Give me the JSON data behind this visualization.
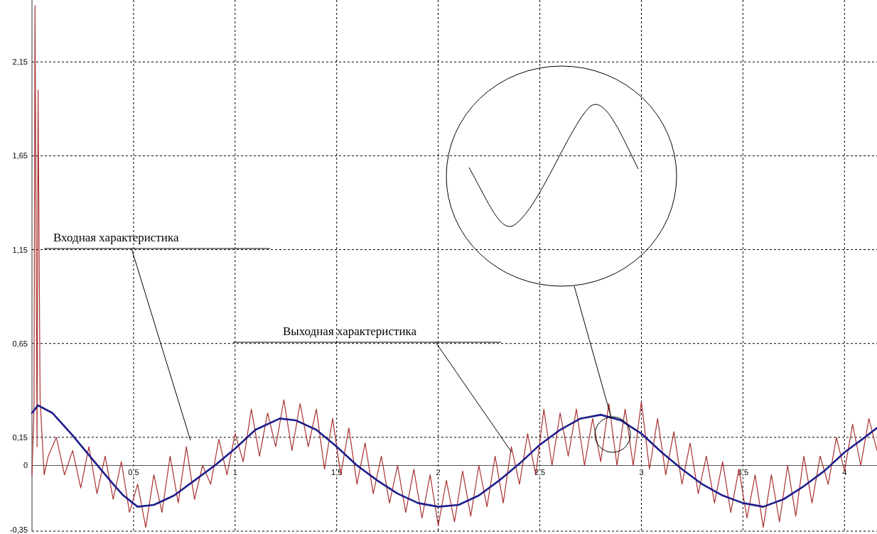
{
  "chart_data": {
    "type": "line",
    "xlim": [
      0,
      4.16
    ],
    "ylim": [
      -0.35,
      2.48
    ],
    "xticks": [
      {
        "value": 0.5,
        "label": "0,5"
      },
      1,
      {
        "value": 1.5,
        "label": "1,5"
      },
      2,
      {
        "value": 2.5,
        "label": "2,5"
      },
      3,
      {
        "value": 3.5,
        "label": "3,5"
      },
      4
    ],
    "yticks": [
      {
        "value": -0.35,
        "label": "-0,35"
      },
      0,
      {
        "value": 0.15,
        "label": "0,15"
      },
      {
        "value": 0.65,
        "label": "0,65"
      },
      {
        "value": 1.15,
        "label": "1,15"
      },
      {
        "value": 1.65,
        "label": "1,65"
      },
      {
        "value": 2.15,
        "label": "2,15"
      }
    ],
    "grid": true,
    "marker": "none",
    "line_style": "solid",
    "series": [
      {
        "color": "#a83232",
        "x": [
          0,
          0.01,
          0.015,
          0.025,
          0.03,
          0.04,
          0.06,
          0.08,
          0.12,
          0.16,
          0.2,
          0.24,
          0.28,
          0.32,
          0.36,
          0.4,
          0.44,
          0.48,
          0.52,
          0.56,
          0.6,
          0.64,
          0.68,
          0.72,
          0.76,
          0.8,
          0.84,
          0.88,
          0.92,
          0.96,
          1,
          1.04,
          1.08,
          1.12,
          1.16,
          1.2,
          1.24,
          1.28,
          1.32,
          1.36,
          1.4,
          1.44,
          1.48,
          1.52,
          1.56,
          1.6,
          1.64,
          1.68,
          1.72,
          1.76,
          1.8,
          1.84,
          1.88,
          1.92,
          1.96,
          2,
          2.04,
          2.08,
          2.12,
          2.16,
          2.2,
          2.24,
          2.28,
          2.32,
          2.36,
          2.4,
          2.44,
          2.48,
          2.52,
          2.56,
          2.6,
          2.64,
          2.68,
          2.72,
          2.76,
          2.8,
          2.84,
          2.88,
          2.92,
          2.96,
          3,
          3.04,
          3.08,
          3.12,
          3.16,
          3.2,
          3.24,
          3.28,
          3.32,
          3.36,
          3.4,
          3.44,
          3.48,
          3.52,
          3.56,
          3.6,
          3.64,
          3.68,
          3.72,
          3.76,
          3.8,
          3.84,
          3.88,
          3.92,
          3.96,
          4,
          4.04,
          4.08,
          4.12,
          4.16
        ],
        "values": [
          -0.05,
          0.3,
          2.45,
          0.1,
          2.0,
          0.35,
          -0.05,
          0.05,
          0.15,
          -0.05,
          0.08,
          -0.12,
          0.1,
          -0.15,
          0.05,
          -0.18,
          0.02,
          -0.25,
          -0.1,
          -0.33,
          -0.05,
          -0.25,
          0.05,
          -0.2,
          0.1,
          -0.18,
          0.0,
          -0.1,
          0.14,
          -0.05,
          0.17,
          0.02,
          0.3,
          0.05,
          0.28,
          0.1,
          0.35,
          0.08,
          0.33,
          0.1,
          0.3,
          -0.02,
          0.25,
          -0.05,
          0.2,
          -0.1,
          0.12,
          -0.15,
          0.05,
          -0.2,
          0.0,
          -0.25,
          -0.02,
          -0.28,
          -0.05,
          -0.32,
          -0.08,
          -0.3,
          -0.03,
          -0.27,
          0.0,
          -0.22,
          0.05,
          -0.2,
          0.1,
          -0.1,
          0.17,
          -0.05,
          0.3,
          0.0,
          0.28,
          0.05,
          0.3,
          0.0,
          0.25,
          0.02,
          0.33,
          0.0,
          0.3,
          0.0,
          0.34,
          -0.02,
          0.25,
          -0.05,
          0.18,
          -0.1,
          0.12,
          -0.15,
          0.05,
          -0.2,
          0.02,
          -0.25,
          -0.02,
          -0.28,
          -0.05,
          -0.33,
          -0.05,
          -0.3,
          0.0,
          -0.27,
          0.05,
          -0.2,
          0.05,
          -0.1,
          0.15,
          -0.03,
          0.22,
          0.0,
          0.25,
          0.08
        ]
      },
      {
        "color": "#1e1e8c",
        "x": [
          0,
          0.03,
          0.1,
          0.2,
          0.3,
          0.4,
          0.45,
          0.52,
          0.6,
          0.7,
          0.8,
          0.9,
          1,
          1.1,
          1.22,
          1.3,
          1.4,
          1.5,
          1.6,
          1.7,
          1.8,
          1.9,
          2,
          2.1,
          2.2,
          2.3,
          2.4,
          2.5,
          2.6,
          2.7,
          2.8,
          2.9,
          3,
          3.1,
          3.2,
          3.3,
          3.4,
          3.5,
          3.6,
          3.7,
          3.8,
          3.9,
          4,
          4.1,
          4.16
        ],
        "values": [
          0.28,
          0.32,
          0.28,
          0.16,
          0.03,
          -0.1,
          -0.16,
          -0.22,
          -0.21,
          -0.16,
          -0.08,
          0.0,
          0.09,
          0.19,
          0.25,
          0.24,
          0.19,
          0.1,
          0.0,
          -0.08,
          -0.15,
          -0.2,
          -0.22,
          -0.21,
          -0.16,
          -0.08,
          0.01,
          0.11,
          0.19,
          0.25,
          0.27,
          0.24,
          0.17,
          0.07,
          -0.02,
          -0.1,
          -0.16,
          -0.2,
          -0.22,
          -0.18,
          -0.11,
          -0.03,
          0.07,
          0.15,
          0.2
        ]
      }
    ],
    "annotations": [
      "Входная характеристика",
      "Выходная характеристика"
    ]
  }
}
